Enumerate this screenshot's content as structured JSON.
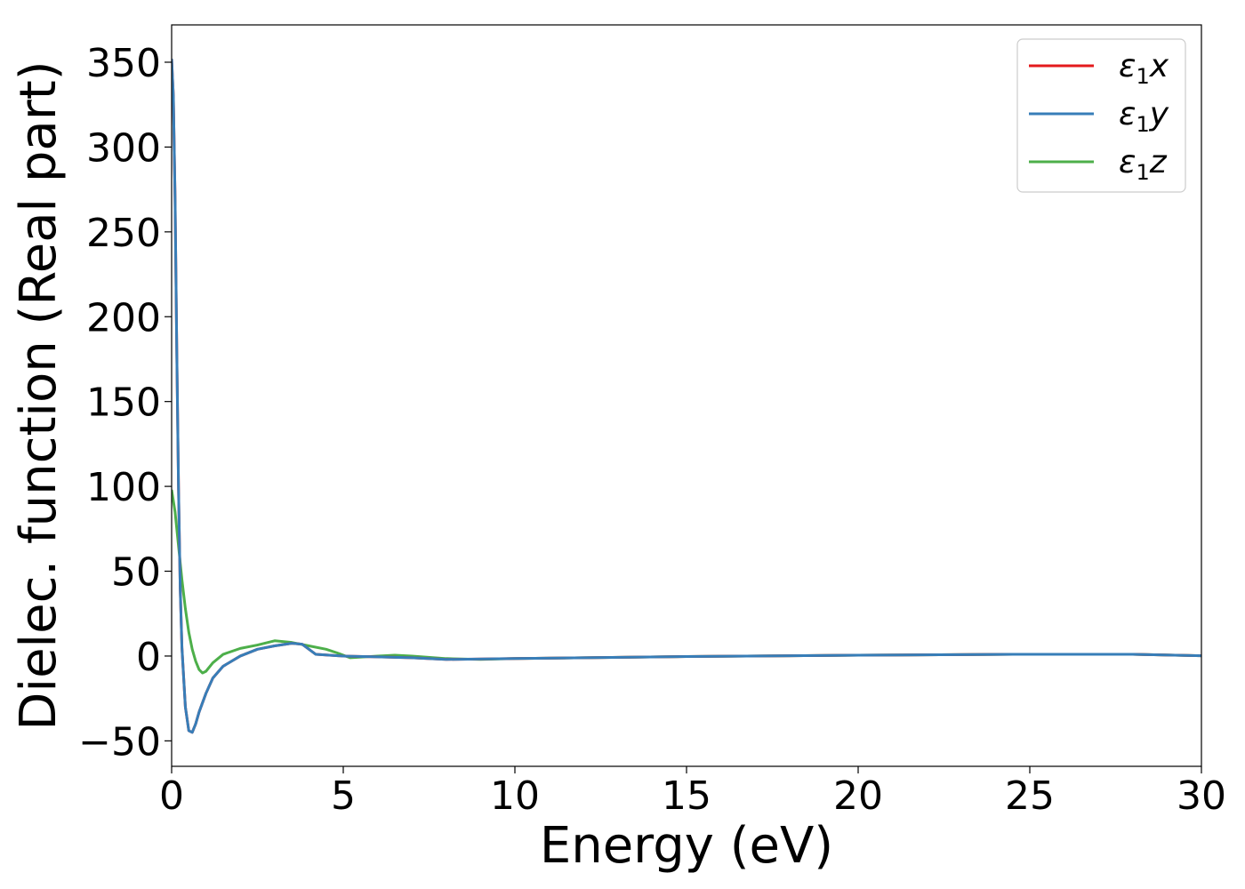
{
  "chart_data": {
    "type": "line",
    "title": "",
    "xlabel": "Energy (eV)",
    "ylabel": "Dielec. function (Real part)",
    "xlim": [
      0,
      30
    ],
    "ylim": [
      -65,
      372
    ],
    "xticks": [
      0,
      5,
      10,
      15,
      20,
      25,
      30
    ],
    "xtick_labels": [
      "0",
      "5",
      "10",
      "15",
      "20",
      "25",
      "30"
    ],
    "yticks": [
      -50,
      0,
      50,
      100,
      150,
      200,
      250,
      300,
      350
    ],
    "ytick_labels": [
      "−50",
      "0",
      "50",
      "100",
      "150",
      "200",
      "250",
      "300",
      "350"
    ],
    "grid": false,
    "legend_position": "top-right",
    "series": [
      {
        "name": "ε₁x",
        "legend": {
          "symbol": "ε",
          "sub": "1",
          "axis": "x"
        },
        "color": "#e41a1c",
        "x": [
          0,
          0.05,
          0.1,
          0.15,
          0.2,
          0.25,
          0.3,
          0.4,
          0.5,
          0.6,
          0.7,
          0.8,
          1.0,
          1.2,
          1.5,
          2.0,
          2.5,
          3.0,
          3.5,
          3.8,
          4.0,
          4.2,
          5.0,
          6.0,
          7.0,
          8.0,
          10.0,
          15.0,
          20.0,
          24.5,
          28.0,
          30.0
        ],
        "y": [
          352,
          330,
          270,
          180,
          100,
          40,
          5,
          -30,
          -44,
          -45,
          -40,
          -33,
          -22,
          -13,
          -6,
          0,
          4,
          6,
          7.5,
          7,
          4,
          1,
          0,
          -0.5,
          -1,
          -2,
          -1.5,
          -0.3,
          0.5,
          1,
          1,
          0.2
        ]
      },
      {
        "name": "ε₁y",
        "legend": {
          "symbol": "ε",
          "sub": "1",
          "axis": "y"
        },
        "color": "#377eb8",
        "x": [
          0,
          0.05,
          0.1,
          0.15,
          0.2,
          0.25,
          0.3,
          0.4,
          0.5,
          0.6,
          0.7,
          0.8,
          1.0,
          1.2,
          1.5,
          2.0,
          2.5,
          3.0,
          3.5,
          3.8,
          4.0,
          4.2,
          5.0,
          6.0,
          7.0,
          8.0,
          10.0,
          15.0,
          20.0,
          24.5,
          28.0,
          30.0
        ],
        "y": [
          352,
          330,
          270,
          180,
          100,
          40,
          5,
          -30,
          -44,
          -45,
          -40,
          -33,
          -22,
          -13,
          -6,
          0,
          4,
          6,
          7.5,
          7,
          4,
          1,
          0,
          -0.5,
          -1,
          -2,
          -1.5,
          -0.3,
          0.5,
          1,
          1,
          0.2
        ]
      },
      {
        "name": "ε₁z",
        "legend": {
          "symbol": "ε",
          "sub": "1",
          "axis": "z"
        },
        "color": "#4daf4a",
        "x": [
          0,
          0.1,
          0.2,
          0.3,
          0.4,
          0.5,
          0.6,
          0.7,
          0.8,
          0.9,
          1.0,
          1.2,
          1.5,
          2.0,
          2.5,
          3.0,
          3.5,
          4.0,
          4.5,
          4.8,
          5.2,
          6.0,
          6.5,
          7.0,
          8.0,
          9.0,
          10.0,
          15.0,
          20.0,
          24.5,
          28.0,
          30.0
        ],
        "y": [
          98,
          85,
          65,
          45,
          28,
          14,
          4,
          -3,
          -8,
          -10,
          -9,
          -4,
          1,
          4.5,
          6.5,
          9,
          8,
          6,
          4,
          2,
          -1,
          0,
          0.5,
          0,
          -1.5,
          -2,
          -1.5,
          -0.3,
          0.5,
          1,
          1,
          0.2
        ]
      }
    ]
  }
}
